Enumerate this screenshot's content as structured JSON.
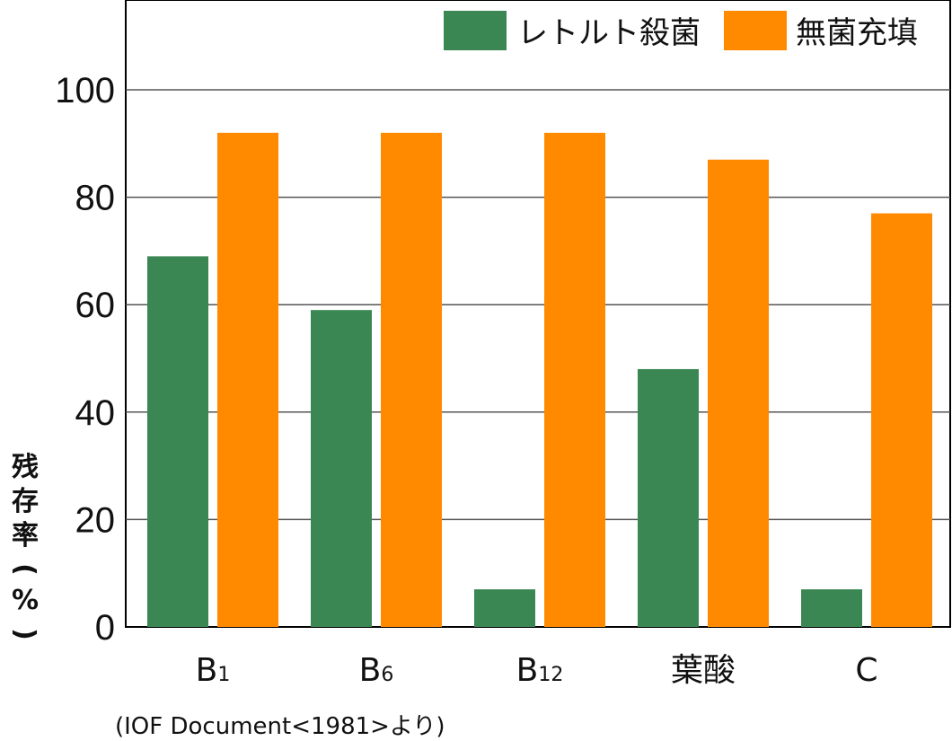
{
  "chart_data": {
    "type": "bar",
    "categories": [
      {
        "base": "B",
        "sub": "1"
      },
      {
        "base": "B",
        "sub": "6"
      },
      {
        "base": "B",
        "sub": "12"
      },
      {
        "base": "葉酸",
        "sub": ""
      },
      {
        "base": "C",
        "sub": ""
      }
    ],
    "series": [
      {
        "name": "レトルト殺菌",
        "color": "#3a8753",
        "values": [
          69,
          59,
          7,
          48,
          7
        ]
      },
      {
        "name": "無菌充填",
        "color": "#ff8a00",
        "values": [
          92,
          92,
          92,
          87,
          77
        ]
      }
    ],
    "ylabel": "残存率(%)",
    "ylim": [
      0,
      100
    ],
    "yticks": [
      0,
      20,
      40,
      60,
      80,
      100
    ],
    "grid": true,
    "legend_position": "top-right"
  },
  "source_note": "(IOF Document<1981>より)"
}
